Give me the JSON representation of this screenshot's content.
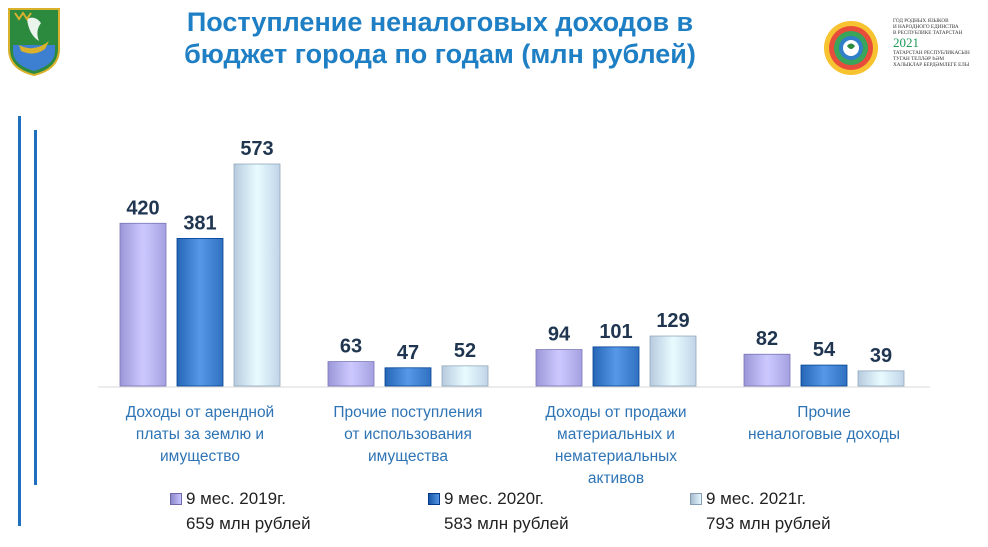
{
  "title": "Поступление неналоговых доходов в бюджет города по годам (млн рублей)",
  "title_line1": "Поступление неналоговых доходов в",
  "title_line2": "бюджет города по годам (млн рублей)",
  "badge": {
    "line1": "ГОД РОДНЫХ ЯЗЫКОВ",
    "line2": "И НАРОДНОГО ЕДИНСТВА",
    "line3": "В РЕСПУБЛИКЕ ТАТАРСТАН",
    "year": "2021",
    "line4": "ТАТАРСТАН РЕСПУБЛИКАСЫН",
    "line5": "ТУГАН ТЕЛЛӘР ҺӘМ",
    "line6": "ХАЛЫКЛАР БЕРДӘМЛЕГЕ ЕЛЫ"
  },
  "chart_data": {
    "type": "bar",
    "categories": [
      "Доходы от арендной платы за землю и имущество",
      "Прочие поступления от использования имущества",
      "Доходы от продажи материальных и нематериальных активов",
      "Прочие неналоговые доходы"
    ],
    "category_lines": [
      [
        "Доходы от арендной",
        "платы за землю и",
        "имущество"
      ],
      [
        "Прочие поступления",
        "от использования",
        "имущества"
      ],
      [
        "Доходы от продажи",
        "материальных и",
        "нематериальных",
        "активов"
      ],
      [
        "Прочие",
        "неналоговые доходы"
      ]
    ],
    "series": [
      {
        "name": "9 мес. 2019г.",
        "total": "659 млн рублей",
        "values": [
          420,
          63,
          94,
          82
        ],
        "color": "#b4b0f0"
      },
      {
        "name": "9 мес. 2020г.",
        "total": "583 млн рублей",
        "values": [
          381,
          47,
          101,
          54
        ],
        "color": "#3f7fcf"
      },
      {
        "name": "9 мес. 2021г.",
        "total": "793 млн рублей",
        "values": [
          573,
          52,
          129,
          39
        ],
        "color": "#cfe3f8"
      }
    ],
    "ylim": [
      0,
      573
    ],
    "grid": false,
    "legend_position": "bottom"
  }
}
